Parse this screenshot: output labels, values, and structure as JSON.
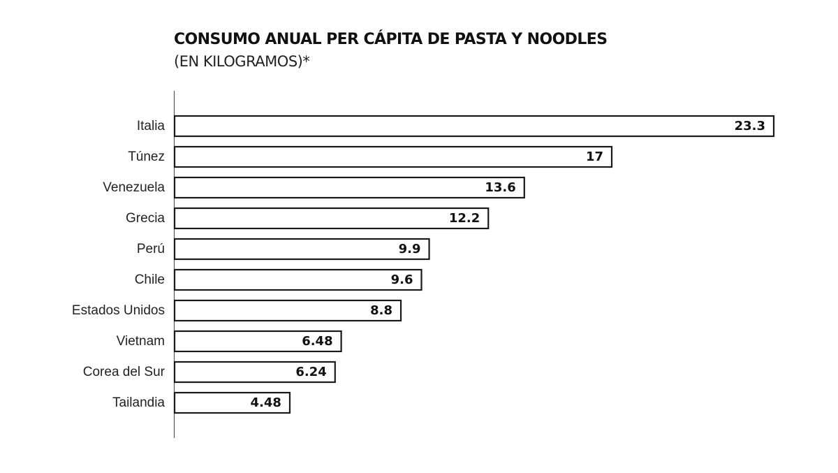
{
  "chart_data": {
    "type": "bar",
    "orientation": "horizontal",
    "title": "CONSUMO ANUAL PER CÁPITA DE PASTA Y NOODLES",
    "subtitle": "(EN KILOGRAMOS)*",
    "xlabel": "",
    "ylabel": "",
    "xlim": [
      0,
      23.3
    ],
    "grid": false,
    "categories": [
      "Italia",
      "Túnez",
      "Venezuela",
      "Grecia",
      "Perú",
      "Chile",
      "Estados Unidos",
      "Vietnam",
      "Corea del Sur",
      "Tailandia"
    ],
    "values": [
      23.3,
      17,
      13.6,
      12.2,
      9.9,
      9.6,
      8.8,
      6.48,
      6.24,
      4.48
    ],
    "value_labels": [
      "23.3",
      "17",
      "13.6",
      "12.2",
      "9.9",
      "9.6",
      "8.8",
      "6.48",
      "6.24",
      "4.48"
    ]
  },
  "colors": {
    "bar_fill": "#ffffff",
    "bar_stroke": "#1a1a1a",
    "text": "#111111",
    "axis": "#555555"
  }
}
